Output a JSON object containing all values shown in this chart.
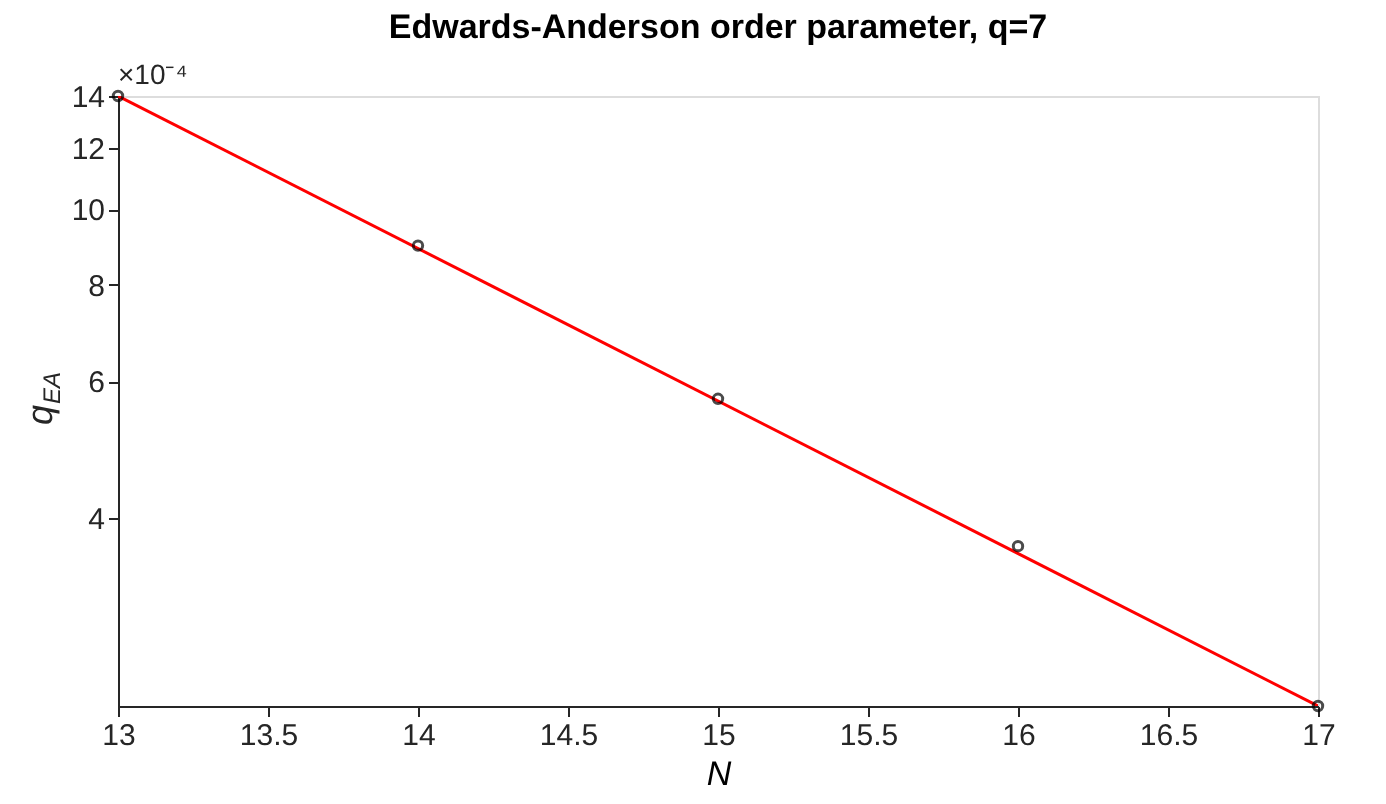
{
  "chart_data": {
    "type": "scatter",
    "title": "Edwards-Anderson order parameter, q=7",
    "xlabel": "N",
    "ylabel": "q$_{EA}$",
    "annotations": [
      "×10⁻⁴"
    ],
    "x": [
      13,
      14,
      15,
      16,
      17
    ],
    "series": [
      {
        "type": "line",
        "color": "#ff0000",
        "x": [
          13,
          17
        ],
        "values": [
          14,
          2.29
        ],
        "marker": "none",
        "line_style": "solid"
      },
      {
        "color": "#000000",
        "values": [
          14,
          8.98,
          5.7,
          3.68,
          2.29
        ]
      }
    ],
    "marker": "circle",
    "log": "y",
    "grid": false,
    "xlim": [
      13,
      17
    ],
    "xticks": [
      13,
      13.5,
      14,
      14.5,
      15,
      15.5,
      16,
      16.5,
      17
    ],
    "ylim": [
      2.29,
      14
    ],
    "yticks": [
      4,
      6,
      8,
      10,
      12,
      14
    ]
  }
}
